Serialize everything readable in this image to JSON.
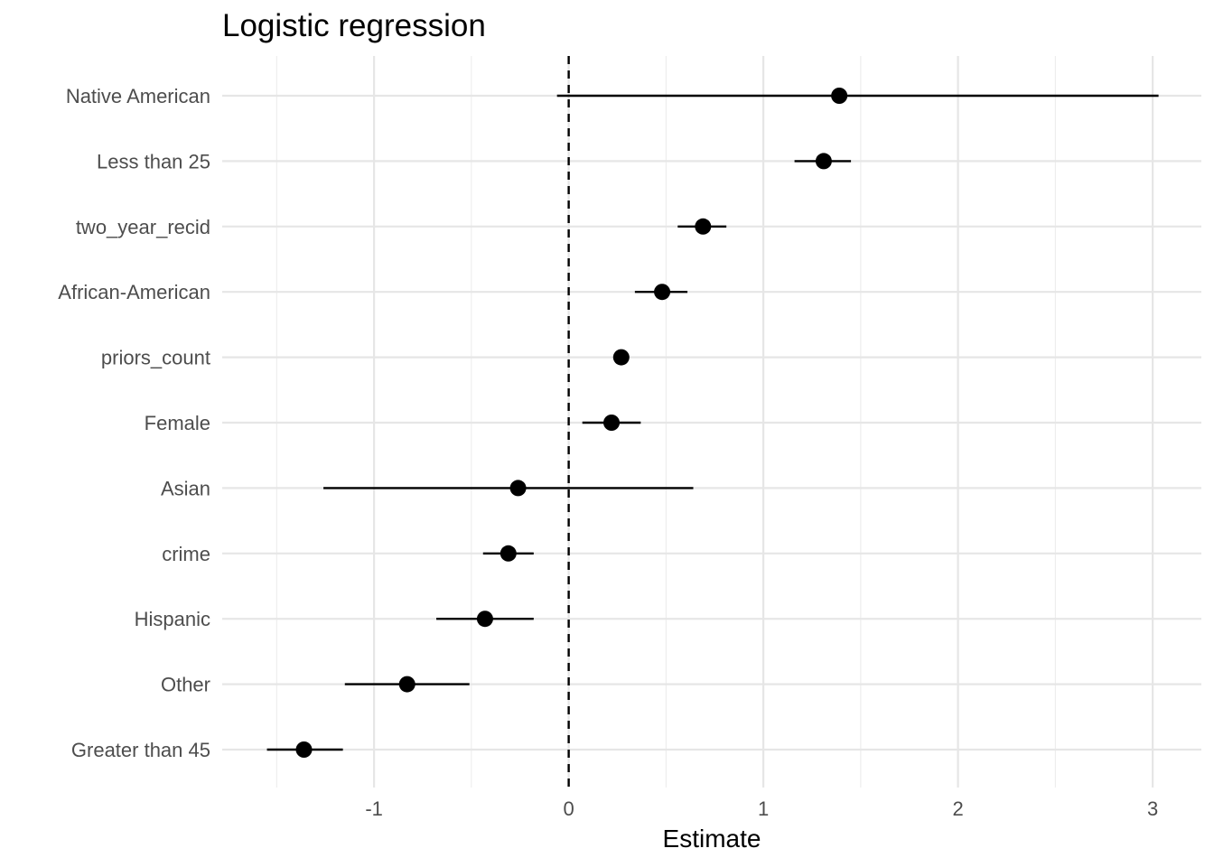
{
  "chart_data": {
    "type": "scatter",
    "subtype": "coefficient-plot",
    "title": "Logistic regression",
    "xlabel": "Estimate",
    "ylabel": "",
    "xlim": [
      -1.78,
      3.25
    ],
    "xticks": [
      -1,
      0,
      1,
      2,
      3
    ],
    "xtick_labels": [
      "-1",
      "0",
      "1",
      "2",
      "3"
    ],
    "grid": true,
    "reference_line": {
      "x": 0,
      "style": "dashed"
    },
    "terms": [
      {
        "label": "Native American",
        "estimate": 1.39,
        "low": -0.06,
        "high": 3.03
      },
      {
        "label": "Less than 25",
        "estimate": 1.31,
        "low": 1.16,
        "high": 1.45
      },
      {
        "label": "two_year_recid",
        "estimate": 0.69,
        "low": 0.56,
        "high": 0.81
      },
      {
        "label": "African-American",
        "estimate": 0.48,
        "low": 0.34,
        "high": 0.61
      },
      {
        "label": "priors_count",
        "estimate": 0.27,
        "low": 0.25,
        "high": 0.28
      },
      {
        "label": "Female",
        "estimate": 0.22,
        "low": 0.07,
        "high": 0.37
      },
      {
        "label": "Asian",
        "estimate": -0.26,
        "low": -1.26,
        "high": 0.64
      },
      {
        "label": "crime",
        "estimate": -0.31,
        "low": -0.44,
        "high": -0.18
      },
      {
        "label": "Hispanic",
        "estimate": -0.43,
        "low": -0.68,
        "high": -0.18
      },
      {
        "label": "Other",
        "estimate": -0.83,
        "low": -1.15,
        "high": -0.51
      },
      {
        "label": "Greater than 45",
        "estimate": -1.36,
        "low": -1.55,
        "high": -1.16
      }
    ]
  }
}
